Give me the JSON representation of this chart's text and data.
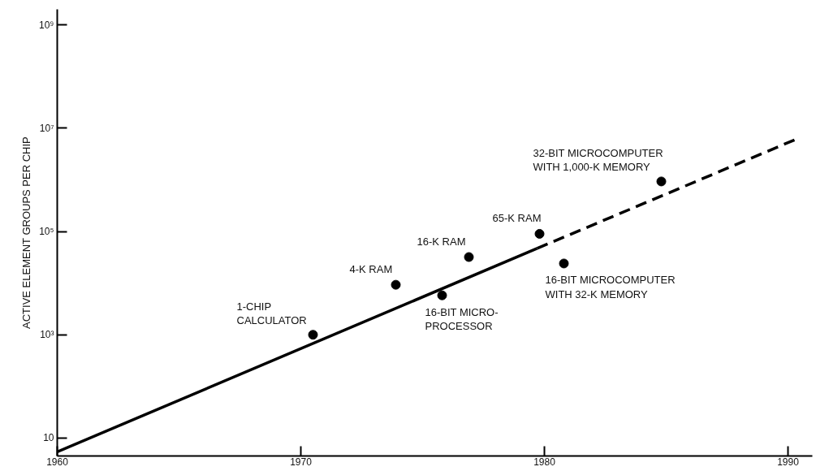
{
  "chart_data": {
    "type": "scatter",
    "ylabel": "ACTIVE ELEMENT GROUPS PER CHIP",
    "log": "y",
    "grid": false,
    "marker": "circle",
    "xlim": [
      1960,
      1991
    ],
    "ylim": [
      4.5,
      2000000000
    ],
    "xticks": [
      1960,
      1970,
      1980,
      1990
    ],
    "yticks": [
      {
        "value": 10,
        "label": "10"
      },
      {
        "value": 1000,
        "label": "10³"
      },
      {
        "value": 100000,
        "label": "10⁵"
      },
      {
        "value": 10000000,
        "label": "10⁷"
      },
      {
        "value": 1000000000,
        "label": "10⁹"
      }
    ],
    "series": [
      {
        "color": "#000000",
        "x": [
          1970.5,
          1973.9,
          1975.8,
          1976.9,
          1979.8,
          1980.8,
          1984.8
        ],
        "values": [
          1000,
          9300,
          5800,
          32000,
          90000,
          24000,
          930000
        ]
      },
      {
        "type": "line",
        "color": "#000000",
        "line_style": "solid",
        "marker": "none",
        "x": [
          1960,
          1979.7
        ],
        "values": [
          5.4,
          47000
        ]
      },
      {
        "type": "line",
        "color": "#000000",
        "line_style": "dashed",
        "marker": "none",
        "x": [
          1979.7,
          1990.4
        ],
        "values": [
          47000,
          6300000
        ]
      }
    ],
    "annotations": [
      {
        "text": "1-CHIP\nCALCULATOR",
        "x": 1970.5,
        "y": 1000
      },
      {
        "text": "4-K RAM",
        "x": 1973.9,
        "y": 9300
      },
      {
        "text": "16-BIT MICRO-\nPROCESSOR",
        "x": 1975.8,
        "y": 5800
      },
      {
        "text": "16-K RAM",
        "x": 1976.9,
        "y": 32000
      },
      {
        "text": "65-K RAM",
        "x": 1979.8,
        "y": 90000
      },
      {
        "text": "16-BIT MICROCOMPUTER\nWITH 32-K MEMORY",
        "x": 1980.8,
        "y": 24000
      },
      {
        "text": "32-BIT MICROCOMPUTER\nWITH 1,000-K MEMORY",
        "x": 1984.8,
        "y": 930000
      }
    ]
  }
}
